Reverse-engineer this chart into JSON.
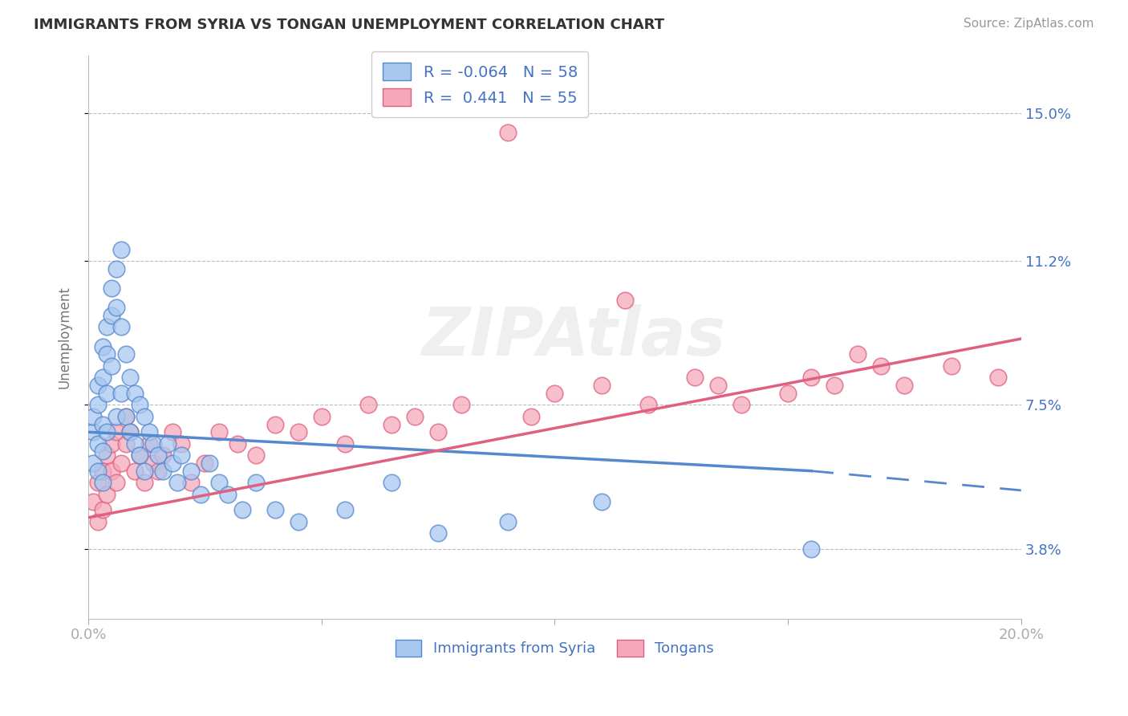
{
  "title": "IMMIGRANTS FROM SYRIA VS TONGAN UNEMPLOYMENT CORRELATION CHART",
  "source": "Source: ZipAtlas.com",
  "ylabel": "Unemployment",
  "xlim": [
    0.0,
    0.2
  ],
  "ylim": [
    0.02,
    0.165
  ],
  "yticks": [
    0.038,
    0.075,
    0.112,
    0.15
  ],
  "ytick_labels": [
    "3.8%",
    "7.5%",
    "11.2%",
    "15.0%"
  ],
  "xticks": [
    0.0,
    0.05,
    0.1,
    0.15,
    0.2
  ],
  "xtick_labels": [
    "0.0%",
    "",
    "",
    "",
    "20.0%"
  ],
  "blue_color": "#A8C8F0",
  "pink_color": "#F5A8BC",
  "blue_line_color": "#5588CC",
  "pink_line_color": "#E06080",
  "background": "#FFFFFF",
  "syria_r": -0.064,
  "syria_n": 58,
  "tonga_r": 0.441,
  "tonga_n": 55,
  "syria_x": [
    0.001,
    0.001,
    0.001,
    0.002,
    0.002,
    0.002,
    0.002,
    0.003,
    0.003,
    0.003,
    0.003,
    0.003,
    0.004,
    0.004,
    0.004,
    0.004,
    0.005,
    0.005,
    0.005,
    0.006,
    0.006,
    0.006,
    0.007,
    0.007,
    0.007,
    0.008,
    0.008,
    0.009,
    0.009,
    0.01,
    0.01,
    0.011,
    0.011,
    0.012,
    0.012,
    0.013,
    0.014,
    0.015,
    0.016,
    0.017,
    0.018,
    0.019,
    0.02,
    0.022,
    0.024,
    0.026,
    0.028,
    0.03,
    0.033,
    0.036,
    0.04,
    0.045,
    0.055,
    0.065,
    0.075,
    0.09,
    0.11,
    0.155
  ],
  "syria_y": [
    0.068,
    0.072,
    0.06,
    0.08,
    0.075,
    0.065,
    0.058,
    0.09,
    0.082,
    0.07,
    0.063,
    0.055,
    0.095,
    0.088,
    0.078,
    0.068,
    0.105,
    0.098,
    0.085,
    0.11,
    0.1,
    0.072,
    0.115,
    0.095,
    0.078,
    0.088,
    0.072,
    0.082,
    0.068,
    0.078,
    0.065,
    0.075,
    0.062,
    0.072,
    0.058,
    0.068,
    0.065,
    0.062,
    0.058,
    0.065,
    0.06,
    0.055,
    0.062,
    0.058,
    0.052,
    0.06,
    0.055,
    0.052,
    0.048,
    0.055,
    0.048,
    0.045,
    0.048,
    0.055,
    0.042,
    0.045,
    0.05,
    0.038
  ],
  "tonga_x": [
    0.001,
    0.002,
    0.002,
    0.003,
    0.003,
    0.004,
    0.004,
    0.005,
    0.005,
    0.006,
    0.006,
    0.007,
    0.008,
    0.008,
    0.009,
    0.01,
    0.011,
    0.012,
    0.013,
    0.014,
    0.015,
    0.016,
    0.018,
    0.02,
    0.022,
    0.025,
    0.028,
    0.032,
    0.036,
    0.04,
    0.045,
    0.05,
    0.055,
    0.06,
    0.065,
    0.07,
    0.075,
    0.08,
    0.09,
    0.095,
    0.1,
    0.11,
    0.115,
    0.12,
    0.13,
    0.135,
    0.14,
    0.15,
    0.155,
    0.16,
    0.165,
    0.17,
    0.175,
    0.185,
    0.195
  ],
  "tonga_y": [
    0.05,
    0.055,
    0.045,
    0.058,
    0.048,
    0.062,
    0.052,
    0.065,
    0.058,
    0.068,
    0.055,
    0.06,
    0.065,
    0.072,
    0.068,
    0.058,
    0.062,
    0.055,
    0.065,
    0.06,
    0.058,
    0.062,
    0.068,
    0.065,
    0.055,
    0.06,
    0.068,
    0.065,
    0.062,
    0.07,
    0.068,
    0.072,
    0.065,
    0.075,
    0.07,
    0.072,
    0.068,
    0.075,
    0.145,
    0.072,
    0.078,
    0.08,
    0.102,
    0.075,
    0.082,
    0.08,
    0.075,
    0.078,
    0.082,
    0.08,
    0.088,
    0.085,
    0.08,
    0.085,
    0.082
  ],
  "blue_line_x0": 0.0,
  "blue_line_x1": 0.155,
  "blue_line_x2": 0.2,
  "blue_line_y0": 0.068,
  "blue_line_y1": 0.058,
  "blue_line_y2": 0.053,
  "pink_line_x0": 0.0,
  "pink_line_x1": 0.2,
  "pink_line_y0": 0.046,
  "pink_line_y1": 0.092
}
